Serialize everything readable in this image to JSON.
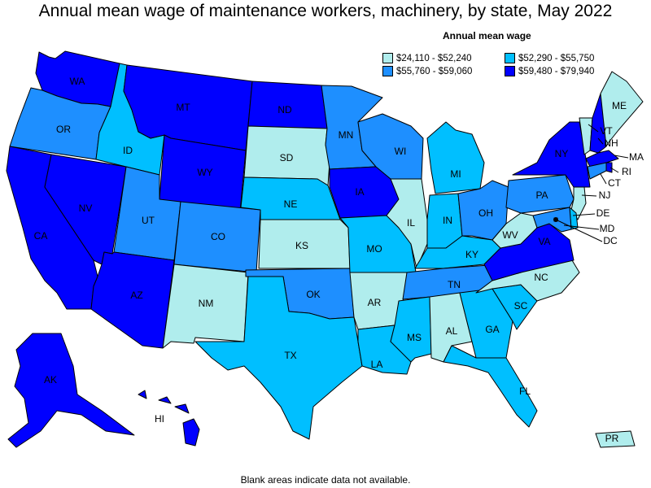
{
  "title": "Annual mean wage of maintenance workers, machinery, by state, May 2022",
  "legend": {
    "title": "Annual mean wage",
    "items": [
      {
        "label": "$24,110 - $52,240",
        "color": "#b0eded"
      },
      {
        "label": "$52,290 - $55,750",
        "color": "#00bfff"
      },
      {
        "label": "$55,760 - $59,060",
        "color": "#1e8fff"
      },
      {
        "label": "$59,480 - $79,940",
        "color": "#0000ff"
      }
    ]
  },
  "footnote": "Blank areas indicate data not available.",
  "states": {
    "WA": {
      "label": "WA",
      "bin": 3
    },
    "OR": {
      "label": "OR",
      "bin": 2
    },
    "CA": {
      "label": "CA",
      "bin": 3
    },
    "NV": {
      "label": "NV",
      "bin": 3
    },
    "ID": {
      "label": "ID",
      "bin": 1
    },
    "MT": {
      "label": "MT",
      "bin": 3
    },
    "WY": {
      "label": "WY",
      "bin": 3
    },
    "UT": {
      "label": "UT",
      "bin": 2
    },
    "AZ": {
      "label": "AZ",
      "bin": 3
    },
    "CO": {
      "label": "CO",
      "bin": 2
    },
    "NM": {
      "label": "NM",
      "bin": 0
    },
    "ND": {
      "label": "ND",
      "bin": 3
    },
    "SD": {
      "label": "SD",
      "bin": 0
    },
    "NE": {
      "label": "NE",
      "bin": 1
    },
    "KS": {
      "label": "KS",
      "bin": 0
    },
    "OK": {
      "label": "OK",
      "bin": 2
    },
    "TX": {
      "label": "TX",
      "bin": 1
    },
    "MN": {
      "label": "MN",
      "bin": 2
    },
    "IA": {
      "label": "IA",
      "bin": 3
    },
    "MO": {
      "label": "MO",
      "bin": 1
    },
    "AR": {
      "label": "AR",
      "bin": 0
    },
    "LA": {
      "label": "LA",
      "bin": 1
    },
    "WI": {
      "label": "WI",
      "bin": 2
    },
    "IL": {
      "label": "IL",
      "bin": 0
    },
    "MI": {
      "label": "MI",
      "bin": 1
    },
    "IN": {
      "label": "IN",
      "bin": 1
    },
    "OH": {
      "label": "OH",
      "bin": 2
    },
    "KY": {
      "label": "KY",
      "bin": 1
    },
    "TN": {
      "label": "TN",
      "bin": 2
    },
    "MS": {
      "label": "MS",
      "bin": 1
    },
    "AL": {
      "label": "AL",
      "bin": 0
    },
    "GA": {
      "label": "GA",
      "bin": 1
    },
    "FL": {
      "label": "FL",
      "bin": 1
    },
    "SC": {
      "label": "SC",
      "bin": 1
    },
    "NC": {
      "label": "NC",
      "bin": 0
    },
    "VA": {
      "label": "VA",
      "bin": 3
    },
    "WV": {
      "label": "WV",
      "bin": 0
    },
    "PA": {
      "label": "PA",
      "bin": 2
    },
    "NY": {
      "label": "NY",
      "bin": 3
    },
    "VT": {
      "label": "VT",
      "bin": 0
    },
    "NH": {
      "label": "NH",
      "bin": 3
    },
    "ME": {
      "label": "ME",
      "bin": 0
    },
    "MA": {
      "label": "MA",
      "bin": 3
    },
    "RI": {
      "label": "RI",
      "bin": 3
    },
    "CT": {
      "label": "CT",
      "bin": 2
    },
    "NJ": {
      "label": "NJ",
      "bin": 0
    },
    "DE": {
      "label": "DE",
      "bin": 1
    },
    "MD": {
      "label": "MD",
      "bin": 2
    },
    "DC": {
      "label": "DC",
      "bin": 3
    },
    "AK": {
      "label": "AK",
      "bin": 3
    },
    "HI": {
      "label": "HI",
      "bin": 3
    },
    "PR": {
      "label": "PR",
      "bin": 0
    }
  }
}
